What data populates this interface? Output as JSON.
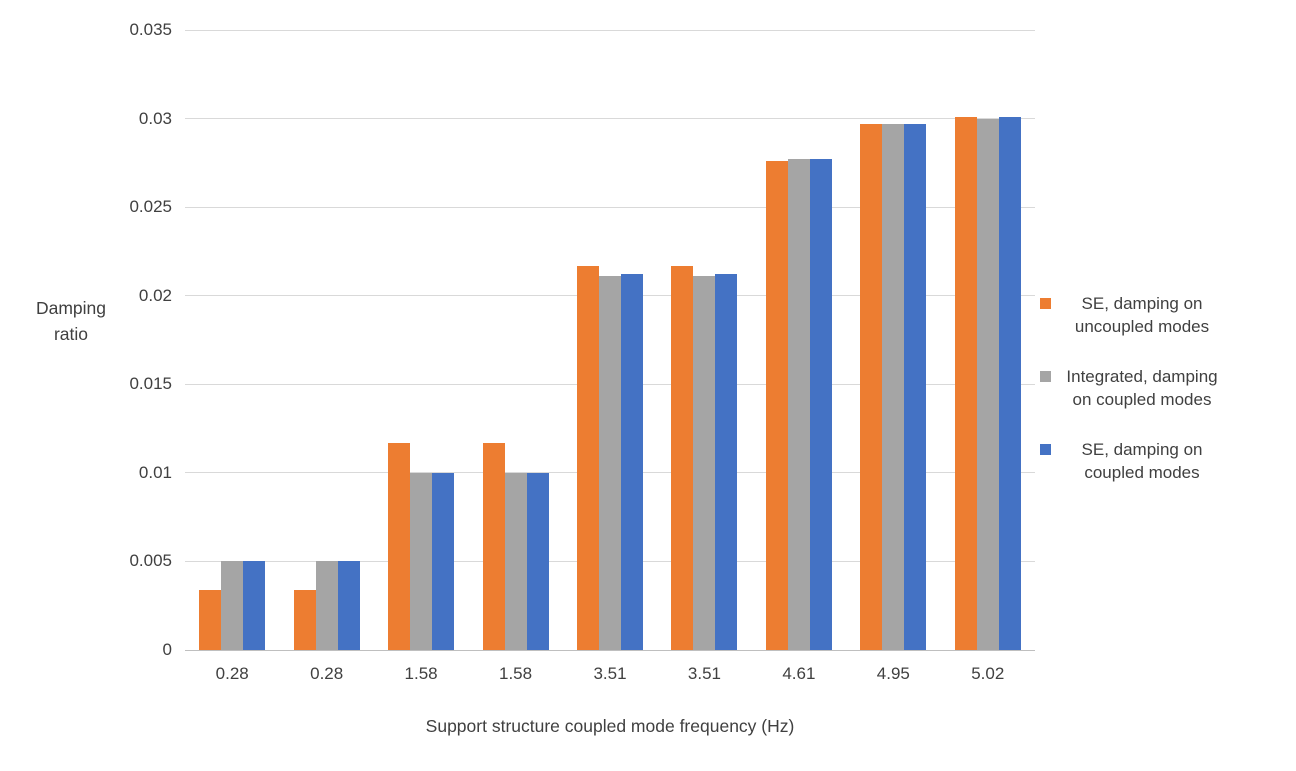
{
  "chart_data": {
    "type": "bar",
    "title": "",
    "xlabel": "Support structure coupled mode frequency (Hz)",
    "ylabel": "Damping ratio",
    "ylabel_display": "Damping\nratio",
    "ylim": [
      0,
      0.035
    ],
    "ytick_step": 0.005,
    "yticks": [
      "0",
      "0.005",
      "0.01",
      "0.015",
      "0.02",
      "0.025",
      "0.03",
      "0.035"
    ],
    "categories": [
      "0.28",
      "0.28",
      "1.58",
      "1.58",
      "3.51",
      "3.51",
      "4.61",
      "4.95",
      "5.02"
    ],
    "series": [
      {
        "name": "SE, damping on uncoupled modes",
        "color": "#ED7D31",
        "values": [
          0.0034,
          0.0034,
          0.0117,
          0.0117,
          0.0217,
          0.0217,
          0.0276,
          0.0297,
          0.0301
        ]
      },
      {
        "name": "Integrated, damping on coupled modes",
        "color": "#A5A5A5",
        "values": [
          0.005,
          0.005,
          0.01,
          0.01,
          0.0211,
          0.0211,
          0.0277,
          0.0297,
          0.03
        ]
      },
      {
        "name": "SE, damping on coupled modes",
        "color": "#4472C4",
        "values": [
          0.005,
          0.005,
          0.01,
          0.01,
          0.0212,
          0.0212,
          0.0277,
          0.0297,
          0.0301
        ]
      }
    ],
    "legend_position": "right",
    "grid": true,
    "colors": {
      "gridline": "#d9d9d9",
      "axis_line": "#bfbfbf",
      "text": "#404040"
    }
  }
}
